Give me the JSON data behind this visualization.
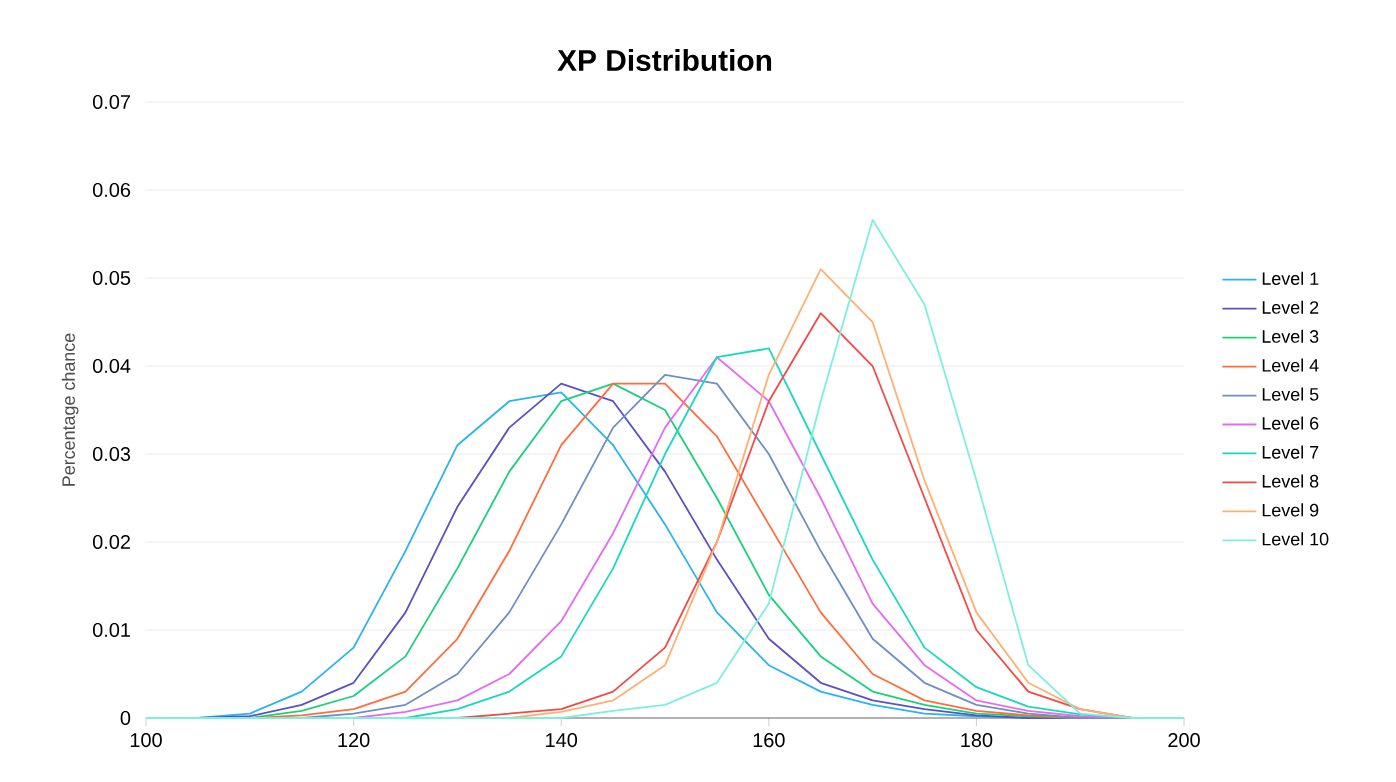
{
  "chart_data": {
    "type": "line",
    "title": "XP Distribution",
    "ylabel": "Percentage chance",
    "x": [
      100,
      105,
      110,
      115,
      120,
      125,
      130,
      135,
      140,
      145,
      150,
      155,
      160,
      165,
      170,
      175,
      180,
      185,
      190,
      195,
      200
    ],
    "xlim": [
      100,
      200
    ],
    "xticks": [
      100,
      120,
      140,
      160,
      180,
      200
    ],
    "ylim": [
      0,
      0.07
    ],
    "yticks": [
      0,
      0.01,
      0.02,
      0.03,
      0.04,
      0.05,
      0.06,
      0.07
    ],
    "grid": "y",
    "legend": "right",
    "marker": "none",
    "line_style": "solid",
    "series": [
      {
        "name": "Level 1",
        "color": "#2ab4ee",
        "values": [
          0,
          0,
          0.0005,
          0.003,
          0.008,
          0.019,
          0.031,
          0.036,
          0.037,
          0.031,
          0.022,
          0.012,
          0.006,
          0.003,
          0.0015,
          0.0005,
          0.0002,
          0,
          0,
          0,
          0
        ]
      },
      {
        "name": "Level 2",
        "color": "#5b50c4",
        "values": [
          0,
          0,
          0.0002,
          0.0015,
          0.004,
          0.012,
          0.024,
          0.033,
          0.038,
          0.036,
          0.028,
          0.018,
          0.009,
          0.004,
          0.002,
          0.001,
          0.0003,
          0,
          0,
          0,
          0
        ]
      },
      {
        "name": "Level 3",
        "color": "#1ad17a",
        "values": [
          0,
          0,
          0,
          0.0008,
          0.0025,
          0.007,
          0.017,
          0.028,
          0.036,
          0.038,
          0.035,
          0.025,
          0.014,
          0.007,
          0.003,
          0.0015,
          0.0005,
          0.0002,
          0,
          0,
          0
        ]
      },
      {
        "name": "Level 4",
        "color": "#ff6d3f",
        "values": [
          0,
          0,
          0,
          0.0003,
          0.001,
          0.003,
          0.009,
          0.019,
          0.031,
          0.038,
          0.038,
          0.032,
          0.022,
          0.012,
          0.005,
          0.002,
          0.0008,
          0.0003,
          0,
          0,
          0
        ]
      },
      {
        "name": "Level 5",
        "color": "#6f8fc0",
        "values": [
          0,
          0,
          0,
          0,
          0.0005,
          0.0015,
          0.005,
          0.012,
          0.022,
          0.033,
          0.039,
          0.038,
          0.03,
          0.019,
          0.009,
          0.004,
          0.0015,
          0.0005,
          0,
          0,
          0
        ]
      },
      {
        "name": "Level 6",
        "color": "#e46cf0",
        "values": [
          null,
          null,
          null,
          0,
          0,
          0.0007,
          0.002,
          0.005,
          0.011,
          0.021,
          0.033,
          0.041,
          0.036,
          0.025,
          0.013,
          0.006,
          0.002,
          0.0008,
          0.0002,
          0,
          0
        ]
      },
      {
        "name": "Level 7",
        "color": "#1ad8c0",
        "values": [
          0,
          0,
          0,
          0,
          0,
          0,
          0.001,
          0.003,
          0.007,
          0.017,
          0.03,
          0.041,
          0.042,
          0.03,
          0.018,
          0.008,
          0.0035,
          0.0013,
          0.0004,
          0,
          0
        ]
      },
      {
        "name": "Level 8",
        "color": "#f24a4a",
        "values": [
          0,
          0,
          0,
          0,
          0,
          0,
          0,
          0.0005,
          0.001,
          0.003,
          0.008,
          0.02,
          0.036,
          0.046,
          0.04,
          0.025,
          0.01,
          0.003,
          0.001,
          0,
          0
        ]
      },
      {
        "name": "Level 9",
        "color": "#ffb070",
        "values": [
          0,
          0,
          0,
          0,
          0,
          0,
          0,
          0,
          0.0007,
          0.002,
          0.006,
          0.02,
          0.039,
          0.051,
          0.045,
          0.027,
          0.012,
          0.004,
          0.001,
          0,
          0
        ]
      },
      {
        "name": "Level 10",
        "color": "#7eeedd",
        "values": [
          0,
          0,
          0,
          0,
          0,
          0,
          0,
          0,
          0,
          0.0008,
          0.0015,
          0.004,
          0.013,
          0.036,
          0.0566,
          0.047,
          0.027,
          0.006,
          0.0005,
          0,
          0
        ]
      }
    ]
  }
}
